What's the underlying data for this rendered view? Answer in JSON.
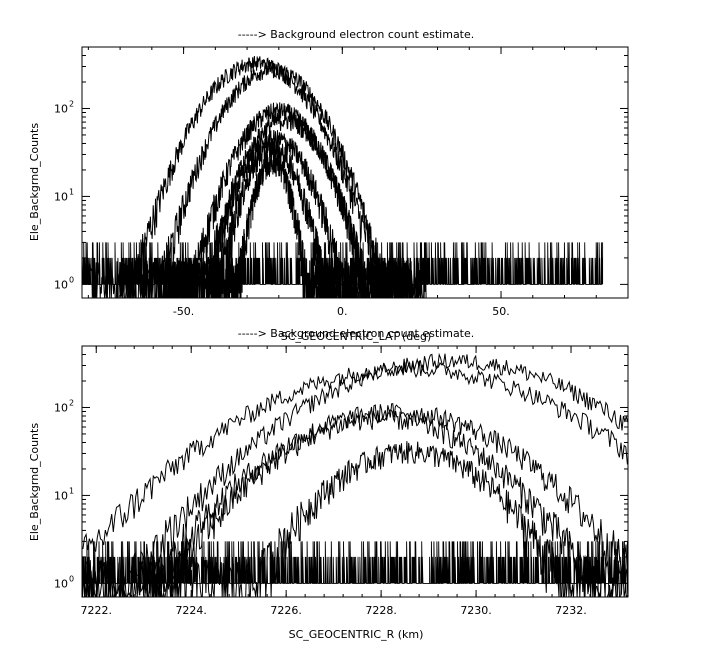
{
  "chart_data": [
    {
      "type": "line",
      "title": "-----> Background electron count estimate.",
      "xlabel": "SC_GEOCENTRIC_LAT (deg)",
      "ylabel": "Ele_Backgrnd_Counts",
      "xlim": [
        -82,
        90
      ],
      "ylim": [
        0.7,
        500
      ],
      "yscale": "log",
      "x_ticks": [
        -50,
        0,
        50
      ],
      "x_tick_labels": [
        "-50.",
        "0.",
        "50."
      ],
      "y_ticks": [
        1,
        10,
        100
      ],
      "y_tick_labels": [
        {
          "base": "10",
          "exp": "0"
        },
        {
          "base": "10",
          "exp": "1"
        },
        {
          "base": "10",
          "exp": "2"
        }
      ],
      "noise_range_x": [
        -82,
        82
      ],
      "noise_floor": [
        1,
        3
      ],
      "series": [
        {
          "center": -27,
          "width": 24,
          "peak": 330
        },
        {
          "center": -22,
          "width": 22,
          "peak": 280
        },
        {
          "center": -20,
          "width": 19,
          "peak": 95
        },
        {
          "center": -18,
          "width": 18,
          "peak": 75
        },
        {
          "center": -21,
          "width": 16,
          "peak": 45
        },
        {
          "center": -22,
          "width": 13,
          "peak": 35
        },
        {
          "center": -22,
          "width": 9,
          "peak": 25
        }
      ],
      "grid": false
    },
    {
      "type": "line",
      "title": "-----> Background electron count estimate.",
      "xlabel": "SC_GEOCENTRIC_R (km)",
      "ylabel": "Ele_Backgrnd_Counts",
      "xlim": [
        7221.7,
        7233.2
      ],
      "ylim": [
        0.7,
        500
      ],
      "yscale": "log",
      "x_ticks": [
        7222,
        7224,
        7226,
        7228,
        7230,
        7232
      ],
      "x_tick_labels": [
        "7222.",
        "7224.",
        "7226.",
        "7228.",
        "7230.",
        "7232."
      ],
      "y_ticks": [
        1,
        10,
        100
      ],
      "y_tick_labels": [
        {
          "base": "10",
          "exp": "0"
        },
        {
          "base": "10",
          "exp": "1"
        },
        {
          "base": "10",
          "exp": "2"
        }
      ],
      "noise_range_x": [
        7221.7,
        7233.2
      ],
      "noise_floor": [
        1,
        3
      ],
      "series": [
        {
          "center": 7229.5,
          "width": 4.2,
          "peak": 340
        },
        {
          "center": 7228.6,
          "width": 4.6,
          "peak": 280
        },
        {
          "center": 7228.3,
          "width": 3.6,
          "peak": 90
        },
        {
          "center": 7228.0,
          "width": 3.2,
          "peak": 75
        },
        {
          "center": 7228.6,
          "width": 2.6,
          "peak": 32
        }
      ],
      "grid": false
    }
  ]
}
